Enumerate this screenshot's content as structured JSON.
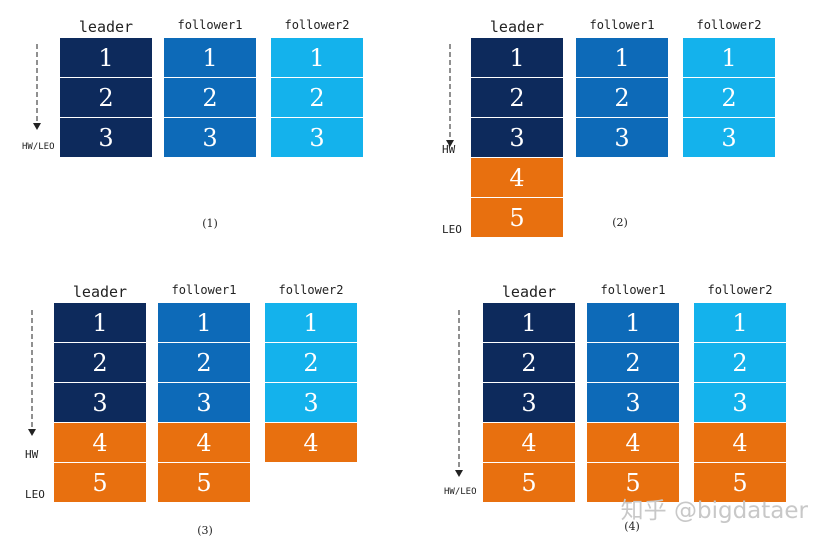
{
  "colors": {
    "leader_committed": "#0d2a5c",
    "follower1_committed": "#0d6ab8",
    "follower2_committed": "#14b2ec",
    "uncommitted": "#e8700f"
  },
  "panels": [
    {
      "caption": "(1)",
      "columns": [
        {
          "header": "leader",
          "cells": [
            "1",
            "2",
            "3"
          ],
          "committed": 3
        },
        {
          "header": "follower1",
          "cells": [
            "1",
            "2",
            "3"
          ],
          "committed": 3
        },
        {
          "header": "follower2",
          "cells": [
            "1",
            "2",
            "3"
          ],
          "committed": 3
        }
      ],
      "markers": [
        {
          "text": "HW/LEO",
          "row": 3
        }
      ]
    },
    {
      "caption": "(2)",
      "columns": [
        {
          "header": "leader",
          "cells": [
            "1",
            "2",
            "3",
            "4",
            "5"
          ],
          "committed": 3
        },
        {
          "header": "follower1",
          "cells": [
            "1",
            "2",
            "3"
          ],
          "committed": 3
        },
        {
          "header": "follower2",
          "cells": [
            "1",
            "2",
            "3"
          ],
          "committed": 3
        }
      ],
      "markers": [
        {
          "text": "HW",
          "row": 3
        },
        {
          "text": "LEO",
          "row": 5
        }
      ]
    },
    {
      "caption": "(3)",
      "columns": [
        {
          "header": "leader",
          "cells": [
            "1",
            "2",
            "3",
            "4",
            "5"
          ],
          "committed": 3
        },
        {
          "header": "follower1",
          "cells": [
            "1",
            "2",
            "3",
            "4",
            "5"
          ],
          "committed": 3
        },
        {
          "header": "follower2",
          "cells": [
            "1",
            "2",
            "3",
            "4"
          ],
          "committed": 3
        }
      ],
      "markers": [
        {
          "text": "HW",
          "row": 4
        },
        {
          "text": "LEO",
          "row": 5
        }
      ]
    },
    {
      "caption": "(4)",
      "columns": [
        {
          "header": "leader",
          "cells": [
            "1",
            "2",
            "3",
            "4",
            "5"
          ],
          "committed": 3
        },
        {
          "header": "follower1",
          "cells": [
            "1",
            "2",
            "3",
            "4",
            "5"
          ],
          "committed": 3
        },
        {
          "header": "follower2",
          "cells": [
            "1",
            "2",
            "3",
            "4",
            "5"
          ],
          "committed": 3
        }
      ],
      "markers": [
        {
          "text": "HW/LEO",
          "row": 5
        }
      ]
    }
  ],
  "watermark": "知乎 @bigdataer"
}
